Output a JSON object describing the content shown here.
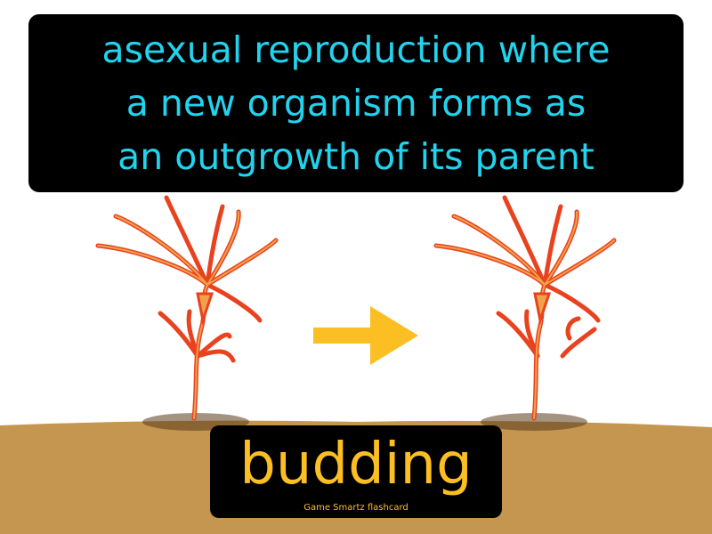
{
  "definition": {
    "lines": [
      "asexual reproduction where",
      "a new organism forms as",
      "an outgrowth of its parent"
    ]
  },
  "term": {
    "word": "budding",
    "credit": "Game Smartz flashcard"
  },
  "colors": {
    "definition_text": "#22d3ee",
    "term_text": "#fbbf24",
    "arrow": "#fbbf24",
    "ground": "#c4964f",
    "hydra": "#e8421f",
    "hydra_core": "#f0a24a"
  },
  "icons": {
    "left": "hydra-parent-with-bud-icon",
    "middle": "right-arrow-icon",
    "right": "hydra-parent-bud-detaching-icon"
  }
}
